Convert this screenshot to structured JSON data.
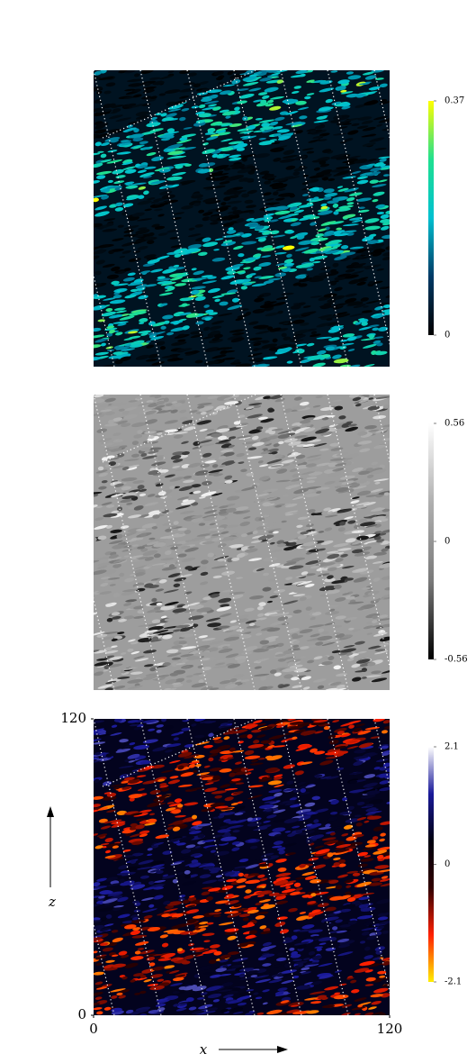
{
  "chart_data": [
    {
      "type": "heatmap",
      "colormap": [
        "#000000",
        "#003a66",
        "#00c0d0",
        "#20e090",
        "#ffff00"
      ],
      "clim": [
        0,
        0.37
      ],
      "cticks": [
        0,
        0.37
      ]
    },
    {
      "type": "heatmap",
      "colormap": [
        "#000000",
        "#7a7a7a",
        "#b0b0b0",
        "#ffffff"
      ],
      "clim": [
        -0.56,
        0.56
      ],
      "cticks": [
        -0.56,
        0,
        0.56
      ]
    },
    {
      "type": "heatmap",
      "colormap": [
        "#ffee00",
        "#ff2000",
        "#300000",
        "#000010",
        "#1a1a9a",
        "#ffffff"
      ],
      "clim": [
        -2.1,
        2.1
      ],
      "cticks": [
        -2.1,
        0,
        2.1
      ],
      "xlim": [
        0,
        120
      ],
      "ylim": [
        0,
        120
      ],
      "xticks": [
        0,
        120
      ],
      "yticks": [
        0,
        120
      ],
      "xlabel": "x",
      "ylabel": "z"
    }
  ]
}
